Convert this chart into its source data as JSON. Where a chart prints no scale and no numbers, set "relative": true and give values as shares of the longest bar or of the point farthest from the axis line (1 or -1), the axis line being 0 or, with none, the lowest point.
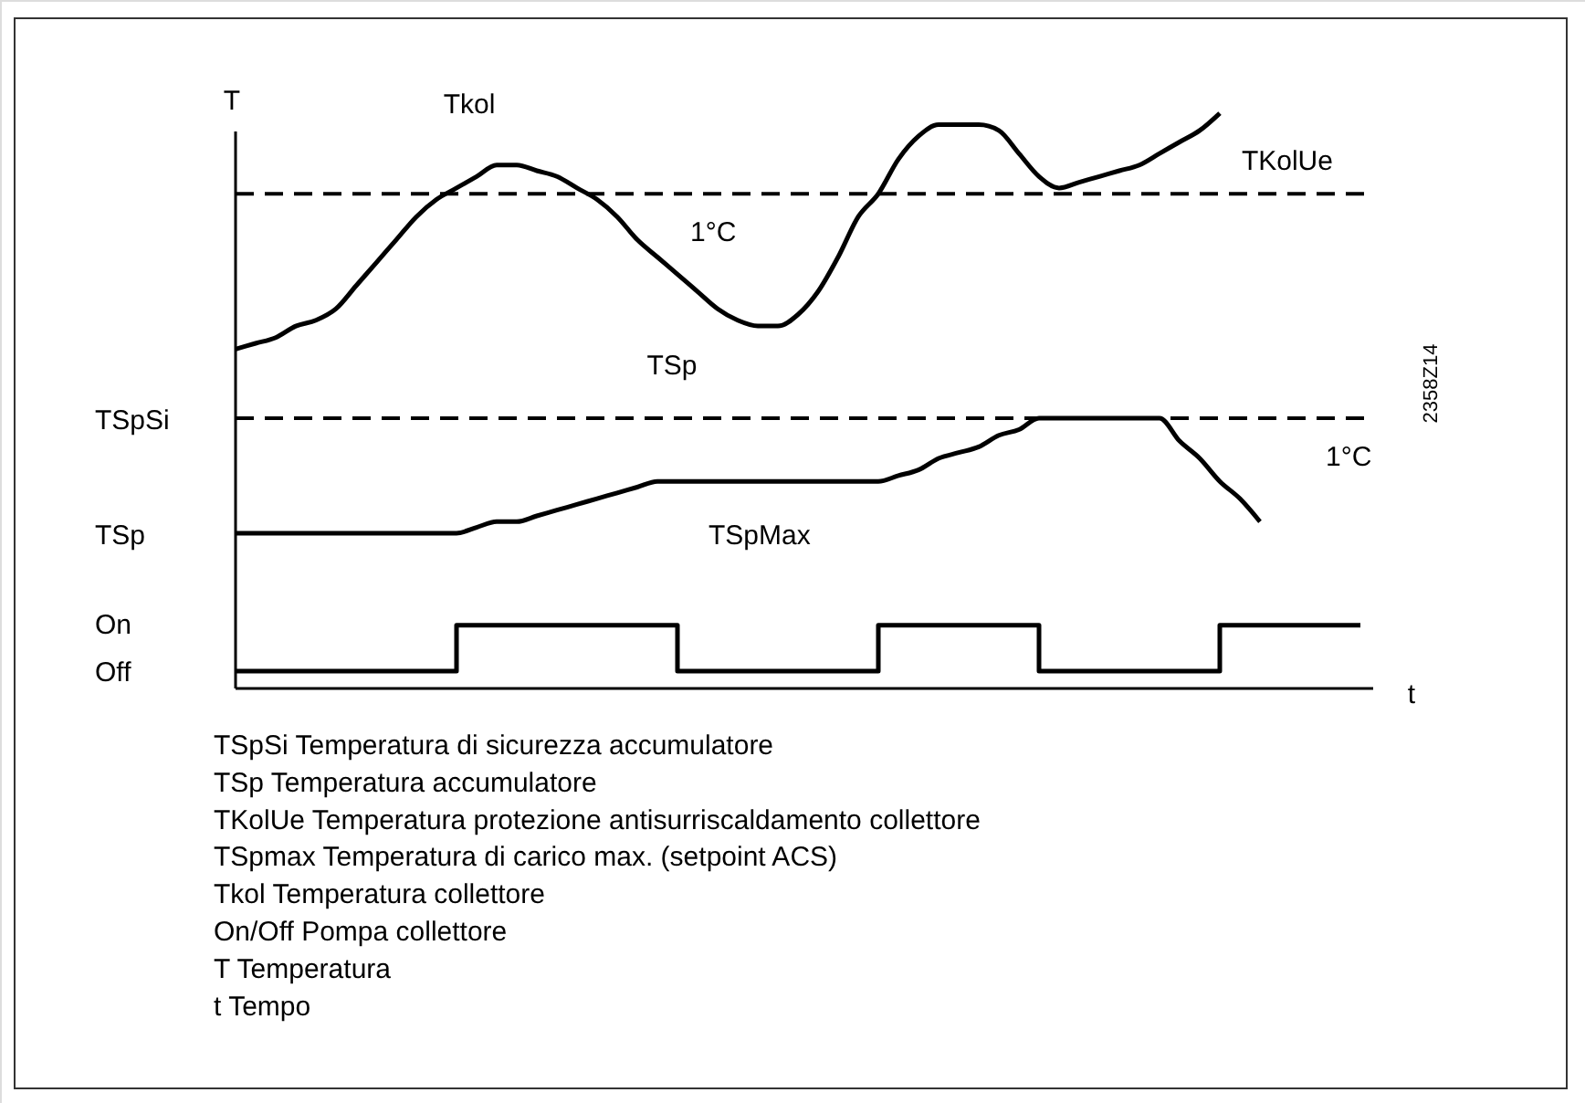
{
  "chart_data": {
    "type": "line",
    "relative": true,
    "xlabel": "t",
    "ylabel": "T",
    "categories": [
      null,
      null,
      null,
      null,
      null,
      null,
      null,
      null,
      null,
      null,
      null,
      null,
      null,
      null,
      null,
      null,
      null,
      null,
      null,
      null,
      null,
      null,
      null,
      null,
      null,
      null,
      null,
      null,
      null,
      null,
      null,
      null,
      null,
      null,
      null,
      null,
      null,
      null,
      null,
      null,
      null,
      null,
      null,
      null,
      null,
      null,
      null,
      null,
      null,
      null,
      null,
      null,
      null,
      null,
      null,
      null,
      null
    ],
    "series": [
      {
        "name": "Tkol",
        "color": "#000000",
        "values": [
          0.59,
          0.6,
          0.61,
          0.63,
          0.64,
          0.66,
          0.7,
          0.74,
          0.78,
          0.82,
          0.85,
          0.87,
          0.89,
          0.91,
          0.91,
          0.9,
          0.89,
          0.87,
          0.85,
          0.82,
          0.78,
          0.75,
          0.72,
          0.69,
          0.66,
          0.64,
          0.63,
          0.63,
          0.65,
          0.69,
          0.75,
          0.82,
          0.86,
          0.92,
          0.96,
          0.98,
          0.98,
          0.98,
          0.97,
          0.93,
          0.89,
          0.87,
          0.88,
          0.89,
          0.9,
          0.91,
          0.93,
          0.95,
          0.97,
          1,
          null,
          null,
          null,
          null,
          null,
          null,
          null
        ]
      },
      {
        "color": "#000000",
        "values": [
          0.27,
          0.27,
          0.27,
          0.27,
          0.27,
          0.27,
          0.27,
          0.27,
          0.27,
          0.27,
          0.27,
          0.27,
          0.28,
          0.29,
          0.29,
          0.3,
          0.31,
          0.32,
          0.33,
          0.34,
          0.35,
          0.36,
          0.36,
          0.36,
          0.36,
          0.36,
          0.36,
          0.36,
          0.36,
          0.36,
          0.36,
          0.36,
          0.36,
          0.37,
          0.38,
          0.4,
          0.41,
          0.42,
          0.44,
          0.45,
          0.47,
          0.47,
          0.47,
          0.47,
          0.47,
          0.47,
          0.47,
          0.43,
          0.4,
          0.36,
          0.33,
          0.29,
          null,
          null,
          null,
          null,
          null
        ]
      },
      {
        "type": "step",
        "color": "#000000",
        "values": [
          0.03,
          0.03,
          0.03,
          0.03,
          0.03,
          0.03,
          0.03,
          0.03,
          0.03,
          0.03,
          0.03,
          0.11,
          0.11,
          0.11,
          0.11,
          0.11,
          0.11,
          0.11,
          0.11,
          0.11,
          0.11,
          0.11,
          0.03,
          0.03,
          0.03,
          0.03,
          0.03,
          0.03,
          0.03,
          0.03,
          0.03,
          0.03,
          0.11,
          0.11,
          0.11,
          0.11,
          0.11,
          0.11,
          0.11,
          0.11,
          0.03,
          0.03,
          0.03,
          0.03,
          0.03,
          0.03,
          0.03,
          0.03,
          0.03,
          0.11,
          0.11,
          0.11,
          0.11,
          0.11,
          0.11,
          0.11,
          0.11
        ]
      }
    ],
    "ref_lines": [
      {
        "axis": "y",
        "value": 0.86,
        "label": "TKolUe",
        "color": "#000000",
        "line_style": "dashed"
      },
      {
        "axis": "y",
        "value": 0.47,
        "label": "TSpSi",
        "color": "#000000",
        "line_style": "dashed"
      }
    ],
    "annotations": [
      "1°C",
      "TSpMax",
      "1°C",
      "2358Z14",
      "TSp",
      "On",
      "Off",
      "TSp",
      "TSpSi   Temperatura di sicurezza accumulatore",
      "TSp   Temperatura accumulatore",
      "TKolUe  Temperatura protezione antisurriscaldamento collettore",
      "TSpmax  Temperatura di carico max. (setpoint ACS)",
      "Tkol   Temperatura collettore",
      "On/Off  Pompa collettore",
      "T   Temperatura",
      "t   Tempo"
    ]
  }
}
